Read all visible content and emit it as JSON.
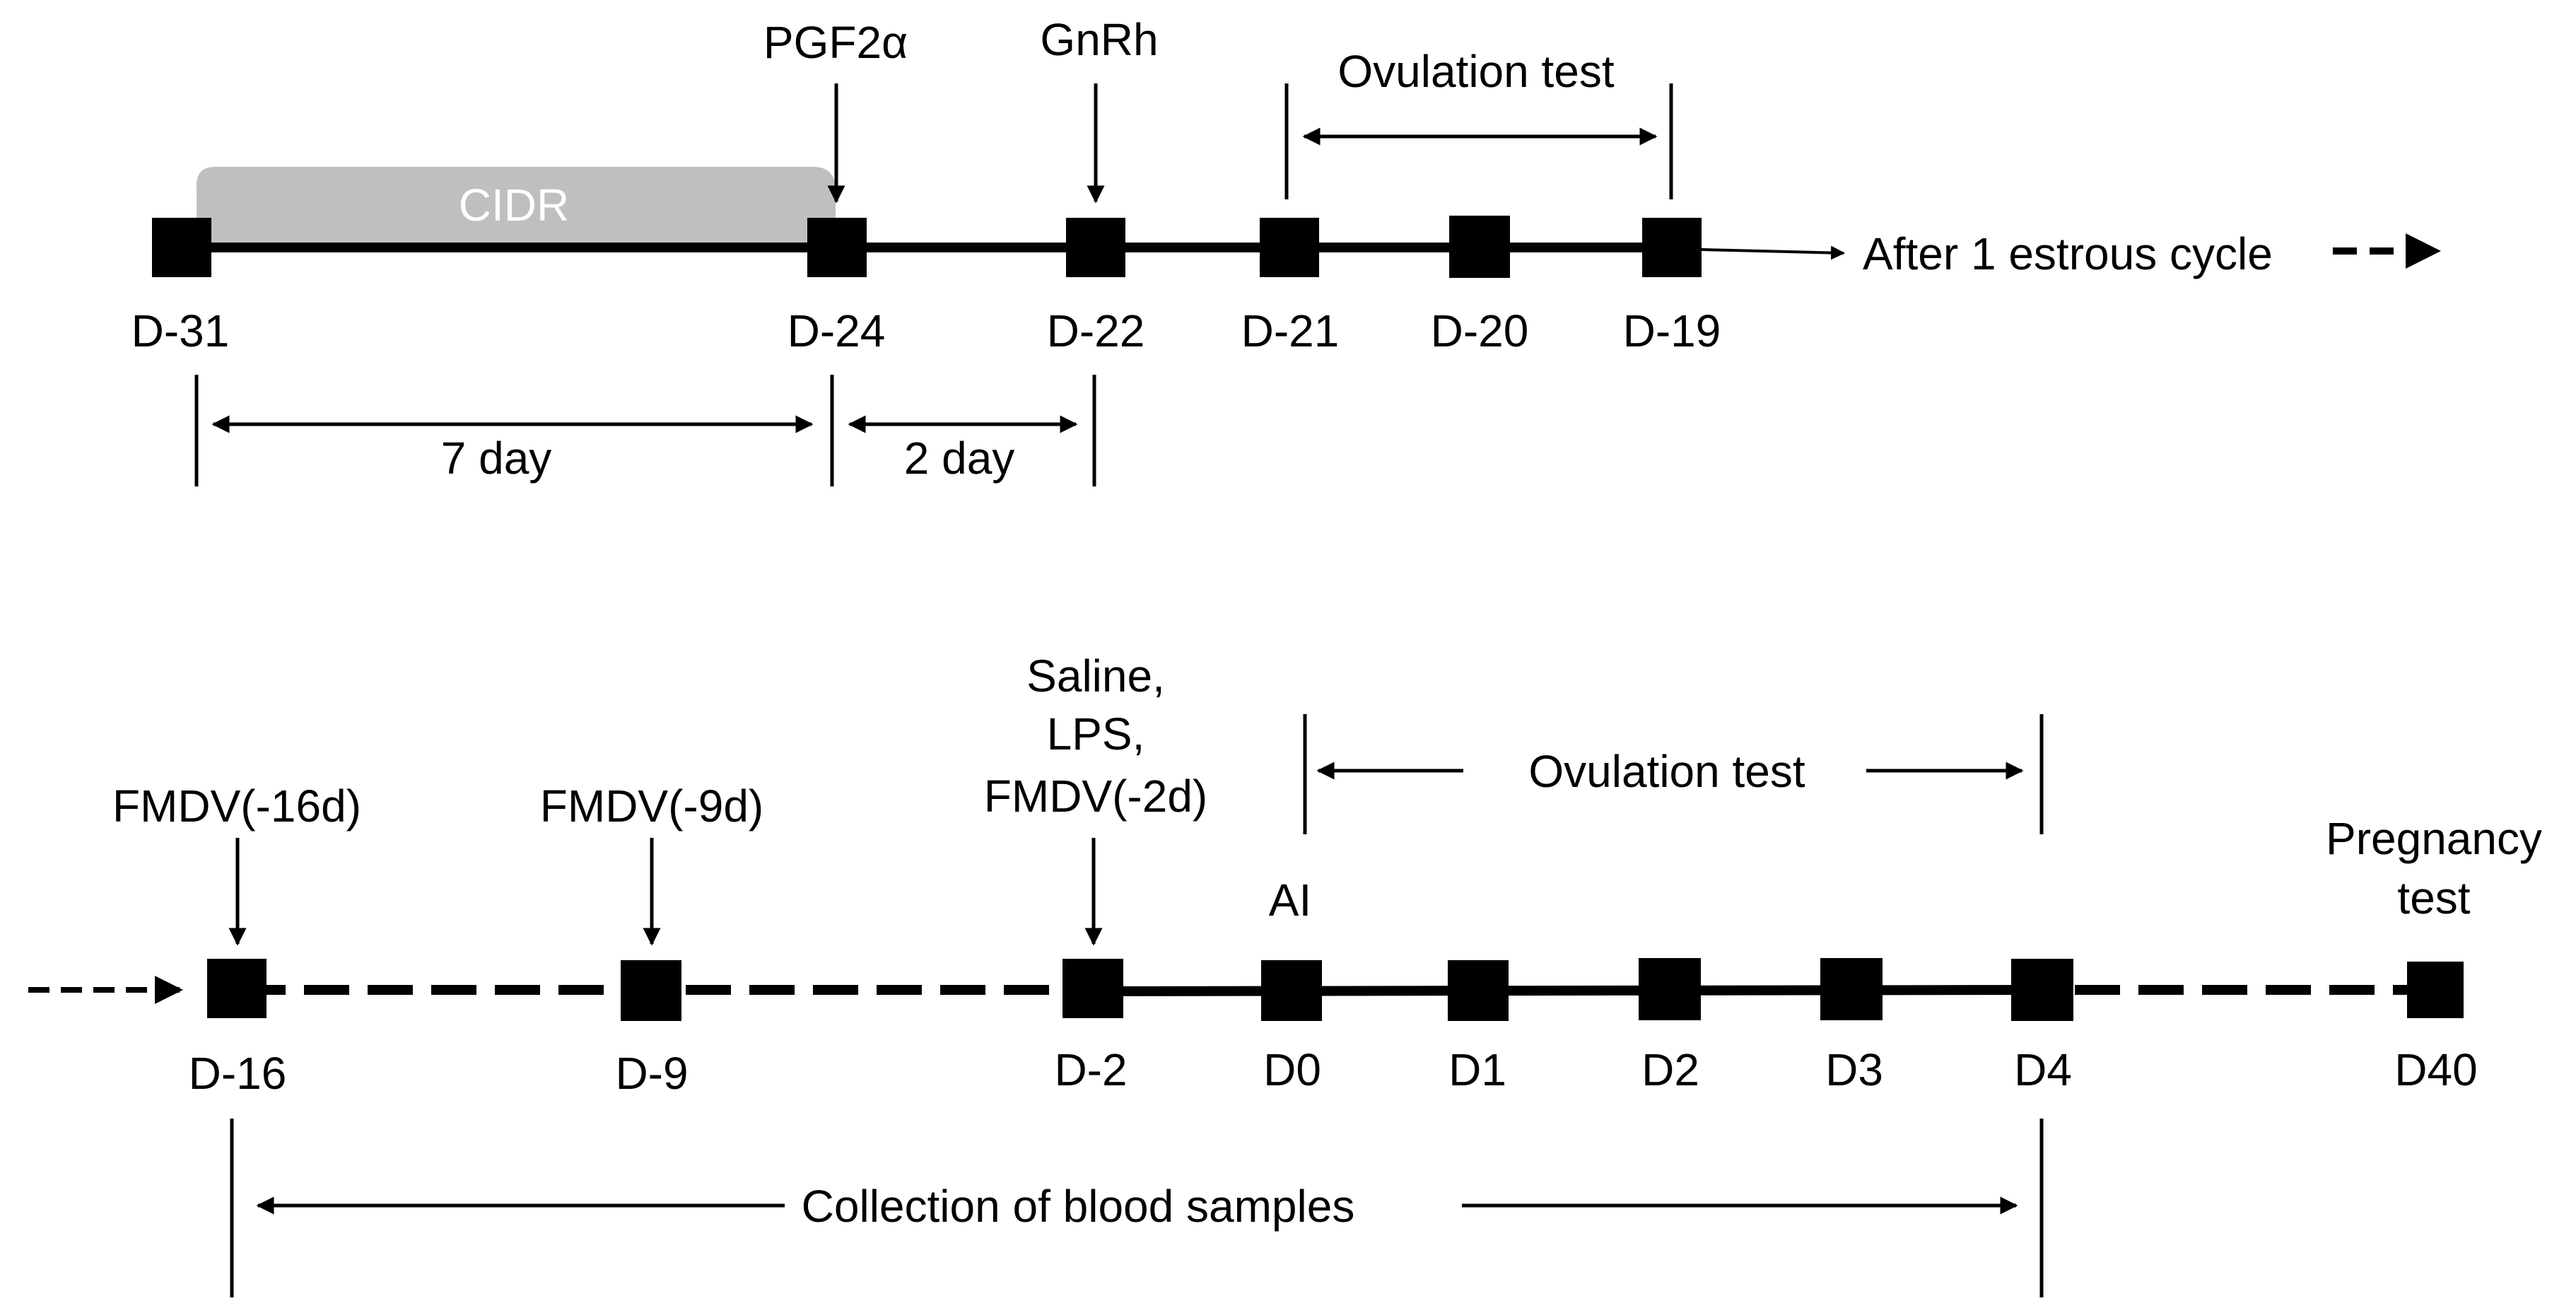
{
  "top_timeline": {
    "treatment_bar": "CIDR",
    "day_labels": [
      "D-31",
      "D-24",
      "D-22",
      "D-21",
      "D-20",
      "D-19"
    ],
    "events": {
      "pgf": "PGF2α",
      "gnrh": "GnRh"
    },
    "ovulation_test": "Ovulation test",
    "after_cycle": "After 1 estrous cycle",
    "intervals": {
      "first": "7 day",
      "second": "2 day"
    }
  },
  "bottom_timeline": {
    "day_labels": [
      "D-16",
      "D-9",
      "D-2",
      "D0",
      "D1",
      "D2",
      "D3",
      "D4",
      "D40"
    ],
    "events": {
      "fmdv16": "FMDV(-16d)",
      "fmdv9": "FMDV(-9d)",
      "challenge": [
        "Saline,",
        "LPS,",
        "FMDV(-2d)"
      ],
      "ai": "AI",
      "pregnancy": [
        "Pregnancy",
        "test"
      ]
    },
    "ovulation_test": "Ovulation test",
    "blood_collection": "Collection of blood samples"
  },
  "colors": {
    "ink": "#000000",
    "cidr_fill": "#bfbfbf",
    "cidr_text": "#ffffff",
    "background": "#ffffff"
  }
}
